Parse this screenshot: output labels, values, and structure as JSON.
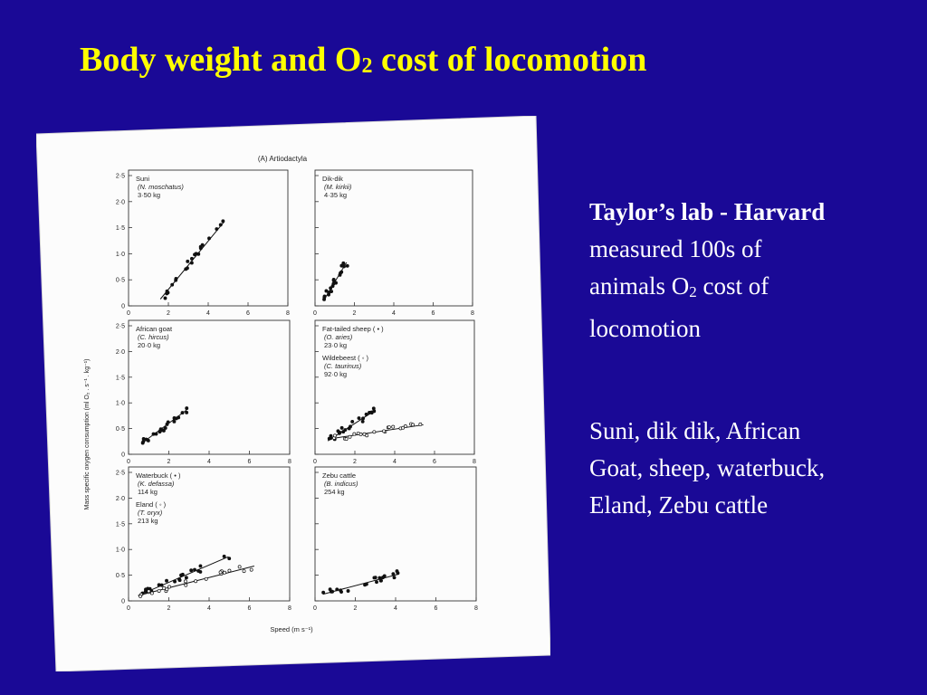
{
  "slide": {
    "title": {
      "pre": "Body weight and O",
      "sub": "2",
      "post": " cost of locomotion"
    },
    "side_text": {
      "heading": "Taylor’s lab - Harvard",
      "line1": "measured 100s of",
      "line2_pre": "animals O",
      "line2_sub": "2",
      "line2_post": " cost of",
      "line3": "locomotion",
      "para2_line1": "Suni, dik dik, African",
      "para2_line2": "Goat, sheep, waterbuck,",
      "para2_line3": "Eland, Zebu cattle"
    }
  },
  "figure": {
    "heading": "(A) Artiodactyla",
    "y_axis_label": "Mass specific oxygen consumption (ml O₂ . s⁻¹ . kg⁻¹)",
    "x_axis_label": "Speed (m s⁻¹)",
    "y_ticks": [
      "0",
      "0·5",
      "1·0",
      "1·5",
      "2·0",
      "2·5"
    ],
    "x_ticks": [
      "0",
      "2",
      "4",
      "6",
      "8"
    ],
    "panels": {
      "suni": {
        "name": "Suni",
        "species": "(N. moschatus)",
        "mass": "3·50 kg"
      },
      "dikdik": {
        "name": "Dik-dik",
        "species": "(M. kirkii)",
        "mass": "4·35 kg"
      },
      "goat": {
        "name": "African goat",
        "species": "(C. hircus)",
        "mass": "20·0 kg"
      },
      "sheep": {
        "name": "Fat-tailed sheep ( • )",
        "species": "(O. aries)",
        "mass": "23·0 kg",
        "name2": "Wildebeest ( ◦ )",
        "species2": "(C. taurinus)",
        "mass2": "92·0 kg"
      },
      "waterbuck": {
        "name": "Waterbuck ( • )",
        "species": "(K. defassa)",
        "mass": "114 kg",
        "name2": "Eland ( ◦ )",
        "species2": "(T. oryx)",
        "mass2": "213 kg"
      },
      "zebu": {
        "name": "Zebu cattle",
        "species": "(B. indicus)",
        "mass": "254 kg"
      }
    }
  }
}
